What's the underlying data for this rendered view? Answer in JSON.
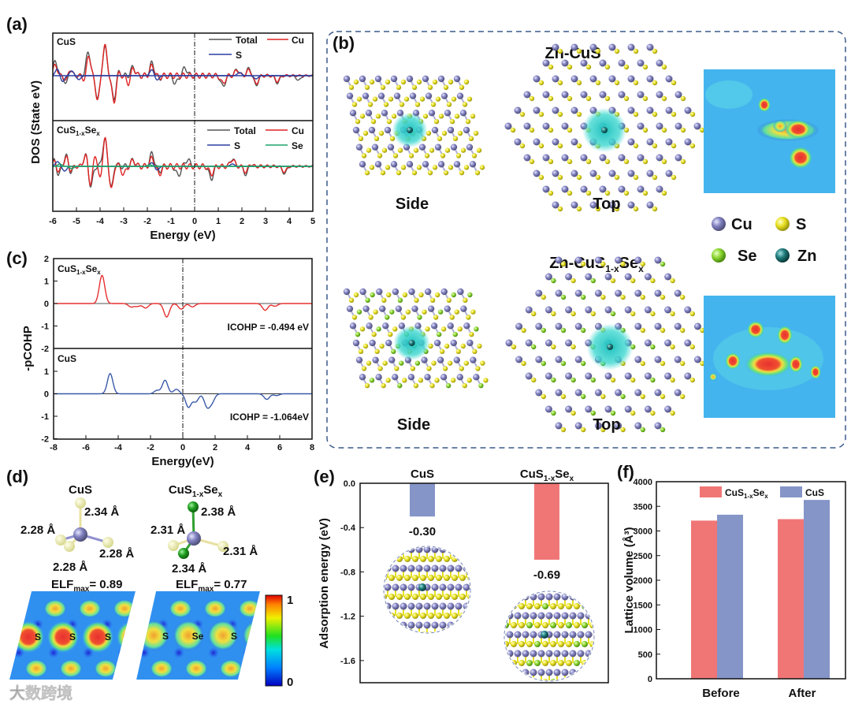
{
  "panels": {
    "a": "(a)",
    "b": "(b)",
    "c": "(c)",
    "d": "(d)",
    "e": "(e)",
    "f": "(f)"
  },
  "formula": {
    "p1": "CuS",
    "s1": "1-x",
    "p2": "Se",
    "s2": "x",
    "cus": "CuS",
    "zn_cus": "Zn-CuS",
    "zn_prefix": "Zn-"
  },
  "colors": {
    "total": "#555555",
    "cu": "#e02424",
    "s": "#2b3fa0",
    "se": "#1fa36b",
    "pcohp_se": "#e53030",
    "pcohp_cus": "#3a5aa8",
    "bar_red": "#f07676",
    "bar_blue": "#8595c8",
    "atom_cu": "#7b7bb8",
    "atom_s": "#e8e020",
    "atom_se": "#8cd630",
    "atom_zn": "#1e6e6e"
  },
  "chart_data": [
    {
      "id": "a",
      "type": "line",
      "xlabel": "Energy (eV)",
      "ylabel": "DOS (State eV)",
      "xlim": [
        -6,
        5
      ],
      "xticks": [
        -6,
        -5,
        -4,
        -3,
        -2,
        -1,
        0,
        1,
        2,
        3,
        4,
        5
      ],
      "subplots": [
        {
          "label": "CuS",
          "ylim": [
            -5.7,
            5.4
          ],
          "legend": [
            "Total",
            "Cu",
            "S"
          ],
          "series": [
            {
              "name": "Total",
              "peaks": [
                [
                  -5.9,
                  1.8
                ],
                [
                  -5.3,
                  1.4
                ],
                [
                  -4.5,
                  3.0
                ],
                [
                  -3.8,
                  3.6
                ],
                [
                  -3.3,
                  1.2
                ],
                [
                  -2.6,
                  1.1
                ],
                [
                  -1.8,
                  1.6
                ],
                [
                  -1.5,
                  1.2
                ],
                [
                  -0.4,
                  1.0
                ],
                [
                  1.8,
                  0.8
                ],
                [
                  2.3,
                  0.9
                ],
                [
                  -5.4,
                  -1.6
                ],
                [
                  -4.1,
                  -2.8
                ],
                [
                  -3.4,
                  -3.6
                ],
                [
                  -1.5,
                  -1.5
                ],
                [
                  -0.8,
                  -1.0
                ],
                [
                  1.2,
                  -1.4
                ],
                [
                  2.6,
                  -1.2
                ],
                [
                  3.5,
                  -0.9
                ],
                [
                  4.4,
                  -0.6
                ]
              ]
            },
            {
              "name": "Cu",
              "peaks": [
                [
                  -5.9,
                  1.3
                ],
                [
                  -5.3,
                  1.2
                ],
                [
                  -4.5,
                  3.2
                ],
                [
                  -3.8,
                  3.8
                ],
                [
                  -3.3,
                  1.0
                ],
                [
                  -2.6,
                  1.0
                ],
                [
                  -1.8,
                  1.2
                ],
                [
                  -1.5,
                  0.9
                ],
                [
                  1.8,
                  0.7
                ],
                [
                  2.3,
                  0.7
                ],
                [
                  -5.4,
                  -1.0
                ],
                [
                  -4.6,
                  -1.3
                ],
                [
                  -4.1,
                  -3.0
                ],
                [
                  -3.4,
                  -3.9
                ],
                [
                  -2.8,
                  -1.0
                ],
                [
                  -1.5,
                  -1.1
                ],
                [
                  1.2,
                  -1.0
                ],
                [
                  2.6,
                  -1.0
                ],
                [
                  3.5,
                  -0.7
                ]
              ]
            },
            {
              "name": "S",
              "peaks": [
                [
                  -5.8,
                  0.9
                ],
                [
                  -5.2,
                  0.6
                ],
                [
                  -1.8,
                  0.8
                ],
                [
                  -5.6,
                  -0.8
                ],
                [
                  -4.9,
                  -0.5
                ],
                [
                  -1.6,
                  -0.6
                ],
                [
                  1.9,
                  0.4
                ],
                [
                  2.6,
                  -0.4
                ]
              ]
            }
          ]
        },
        {
          "label": "CuS1-xSex",
          "ylim": [
            -5.7,
            5.8
          ],
          "legend": [
            "Total",
            "Cu",
            "S",
            "Se"
          ],
          "series": [
            {
              "name": "Total",
              "peaks": [
                [
                  -5.9,
                  1.4
                ],
                [
                  -5.4,
                  2.0
                ],
                [
                  -4.6,
                  1.6
                ],
                [
                  -3.8,
                  3.4
                ],
                [
                  -3.4,
                  1.2
                ],
                [
                  -2.6,
                  0.8
                ],
                [
                  -1.8,
                  1.6
                ],
                [
                  -1.5,
                  1.0
                ],
                [
                  -0.3,
                  0.9
                ],
                [
                  1.6,
                  1.0
                ],
                [
                  2.3,
                  0.7
                ],
                [
                  -5.8,
                  -1.6
                ],
                [
                  -5.3,
                  -1.4
                ],
                [
                  -4.4,
                  -2.6
                ],
                [
                  -3.5,
                  -3.3
                ],
                [
                  -1.5,
                  -1.6
                ],
                [
                  -0.7,
                  -1.2
                ],
                [
                  0.7,
                  -1.6
                ],
                [
                  2.2,
                  -1.4
                ],
                [
                  3.8,
                  -0.9
                ]
              ]
            },
            {
              "name": "Cu",
              "peaks": [
                [
                  -5.9,
                  1.0
                ],
                [
                  -5.4,
                  1.6
                ],
                [
                  -4.6,
                  1.5
                ],
                [
                  -4.2,
                  1.8
                ],
                [
                  -3.8,
                  3.6
                ],
                [
                  -3.4,
                  1.0
                ],
                [
                  -2.6,
                  0.7
                ],
                [
                  -1.8,
                  1.0
                ],
                [
                  1.6,
                  0.9
                ],
                [
                  2.3,
                  0.6
                ],
                [
                  -5.8,
                  -1.0
                ],
                [
                  -5.3,
                  -1.0
                ],
                [
                  -4.4,
                  -2.5
                ],
                [
                  -4.0,
                  -2.0
                ],
                [
                  -3.5,
                  -3.4
                ],
                [
                  -3.0,
                  -1.0
                ],
                [
                  -1.5,
                  -1.0
                ],
                [
                  0.7,
                  -1.0
                ],
                [
                  2.2,
                  -1.0
                ],
                [
                  3.8,
                  -0.7
                ]
              ]
            },
            {
              "name": "S",
              "peaks": [
                [
                  -5.8,
                  0.6
                ],
                [
                  -1.8,
                  0.5
                ],
                [
                  -5.5,
                  -0.6
                ],
                [
                  -1.6,
                  -0.5
                ],
                [
                  1.6,
                  0.3
                ]
              ]
            },
            {
              "name": "Se",
              "peaks": [
                [
                  -5.7,
                  0.3
                ],
                [
                  -5.2,
                  -0.3
                ],
                [
                  -1.9,
                  0.2
                ]
              ]
            }
          ]
        }
      ]
    },
    {
      "id": "c",
      "type": "line",
      "xlabel": "Energy(eV)",
      "ylabel": "-pCOHP",
      "xlim": [
        -8,
        8
      ],
      "xticks": [
        -8,
        -6,
        -4,
        -2,
        0,
        2,
        4,
        6,
        8
      ],
      "subplots": [
        {
          "label": "CuS1-xSex",
          "ylim": [
            -2,
            2
          ],
          "yticks_top": [
            2,
            1,
            0,
            -1,
            -2
          ],
          "annotation": "ICOHP = -0.494 eV",
          "series": [
            {
              "name": "CuS1-xSex",
              "peaks": [
                [
                  -5.0,
                  1.25
                ],
                [
                  -3.2,
                  -0.15
                ],
                [
                  -2.8,
                  -0.12
                ],
                [
                  -2.3,
                  -0.2
                ],
                [
                  -1.0,
                  -0.6
                ],
                [
                  -0.1,
                  -0.25
                ],
                [
                  0.6,
                  -0.15
                ],
                [
                  5.1,
                  -0.3
                ],
                [
                  5.7,
                  -0.12
                ]
              ]
            }
          ]
        },
        {
          "label": "CuS",
          "ylim": [
            -2,
            2
          ],
          "yticks": [
            1,
            0,
            -1,
            -2
          ],
          "annotation": "ICOHP = -1.064eV",
          "series": [
            {
              "name": "CuS",
              "peaks": [
                [
                  -4.5,
                  0.9
                ],
                [
                  -1.6,
                  0.15
                ],
                [
                  -1.1,
                  0.6
                ],
                [
                  -0.4,
                  0.2
                ],
                [
                  0.35,
                  -0.6
                ],
                [
                  0.8,
                  -0.35
                ],
                [
                  1.5,
                  -0.55
                ],
                [
                  1.8,
                  -0.35
                ],
                [
                  5.2,
                  -0.25
                ],
                [
                  5.8,
                  -0.08
                ]
              ]
            }
          ]
        }
      ]
    },
    {
      "id": "e",
      "type": "bar",
      "ylabel": "Adsorption energy (eV)",
      "categories": [
        "CuS",
        "CuS1-xSex"
      ],
      "values": [
        -0.3,
        -0.69
      ],
      "value_labels": [
        "-0.30",
        "-0.69"
      ],
      "ylim": [
        -1.8,
        0
      ],
      "yticks": [
        "0.0",
        "-0.4",
        "-0.8",
        "-1.2",
        "-1.6"
      ],
      "ytick_values": [
        0,
        -0.4,
        -0.8,
        -1.2,
        -1.6
      ]
    },
    {
      "id": "f",
      "type": "bar",
      "ylabel": "Lattice volume (Å³)",
      "categories": [
        "Before",
        "After"
      ],
      "series": [
        {
          "name": "CuS1-xSex",
          "values": [
            3210,
            3240
          ]
        },
        {
          "name": "CuS",
          "values": [
            3330,
            3630
          ]
        }
      ],
      "ylim": [
        0,
        4000
      ],
      "yticks": [
        0,
        500,
        1000,
        1500,
        2000,
        2500,
        3000,
        3500,
        4000
      ],
      "legend": "top"
    }
  ],
  "panel_b": {
    "title_top": "Zn-CuS",
    "side": "Side",
    "top": "Top",
    "legend": [
      {
        "name": "Cu"
      },
      {
        "name": "S"
      },
      {
        "name": "Se"
      },
      {
        "name": "Zn"
      }
    ]
  },
  "panel_d": {
    "cus_bonds": [
      "2.34 Å",
      "2.28 Å",
      "2.28 Å",
      "2.28 Å"
    ],
    "cusse_bonds": [
      "2.38 Å",
      "2.31 Å",
      "2.31 Å",
      "2.34 Å"
    ],
    "elf": "ELF",
    "elf_sub": "max",
    "elf_cus": "= 0.89",
    "elf_cusse": "= 0.77",
    "atoms_cus": [
      "S",
      "S",
      "S"
    ],
    "atoms_cusse": [
      "S",
      "Se",
      "S"
    ],
    "colorbar_max": "1",
    "colorbar_min": "0"
  },
  "watermark": "大数跨境"
}
